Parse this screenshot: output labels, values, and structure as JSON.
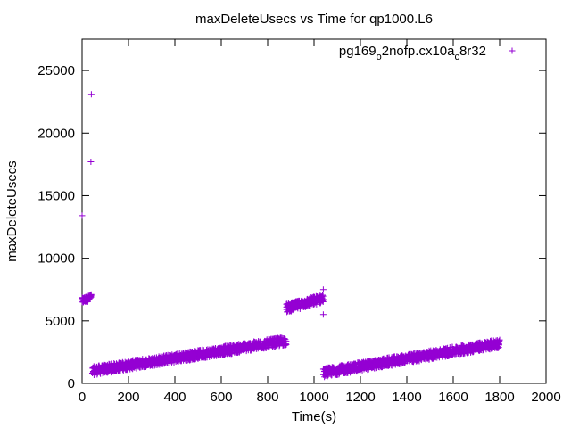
{
  "chart_data": {
    "type": "scatter",
    "title": "maxDeleteUsecs vs Time for qp1000.L6",
    "xlabel": "Time(s)",
    "ylabel": "maxDeleteUsecs",
    "xlim": [
      0,
      2000
    ],
    "ylim": [
      0,
      27500
    ],
    "xticks": [
      0,
      200,
      400,
      600,
      800,
      1000,
      1200,
      1400,
      1600,
      1800,
      2000
    ],
    "yticks": [
      0,
      5000,
      10000,
      15000,
      20000,
      25000
    ],
    "grid": false,
    "legend_position": "top-right",
    "marker": "plus",
    "series_color": "#9400d3",
    "legend": {
      "parts": [
        {
          "text": "pg169",
          "sub": false
        },
        {
          "text": "o",
          "sub": true
        },
        {
          "text": "2nofp.cx10a",
          "sub": false
        },
        {
          "text": "c",
          "sub": true
        },
        {
          "text": "8r32",
          "sub": false
        }
      ]
    },
    "series": [
      {
        "outliers": [
          {
            "x": 0,
            "y": 13400
          },
          {
            "x": 40,
            "y": 23100
          },
          {
            "x": 38,
            "y": 17700
          },
          {
            "x": 1040,
            "y": 5500
          },
          {
            "x": 1040,
            "y": 7500
          }
        ],
        "segments": [
          {
            "x_start": 0,
            "x_end": 40,
            "y_start": 6600,
            "y_end": 6900,
            "spread": 500
          },
          {
            "x_start": 45,
            "x_end": 880,
            "y_start": 1000,
            "y_end": 3400,
            "spread": 700
          },
          {
            "x_start": 880,
            "x_end": 1040,
            "y_start": 6000,
            "y_end": 6800,
            "spread": 700
          },
          {
            "x_start": 1040,
            "x_end": 1800,
            "y_start": 850,
            "y_end": 3200,
            "spread": 700
          }
        ]
      }
    ]
  }
}
